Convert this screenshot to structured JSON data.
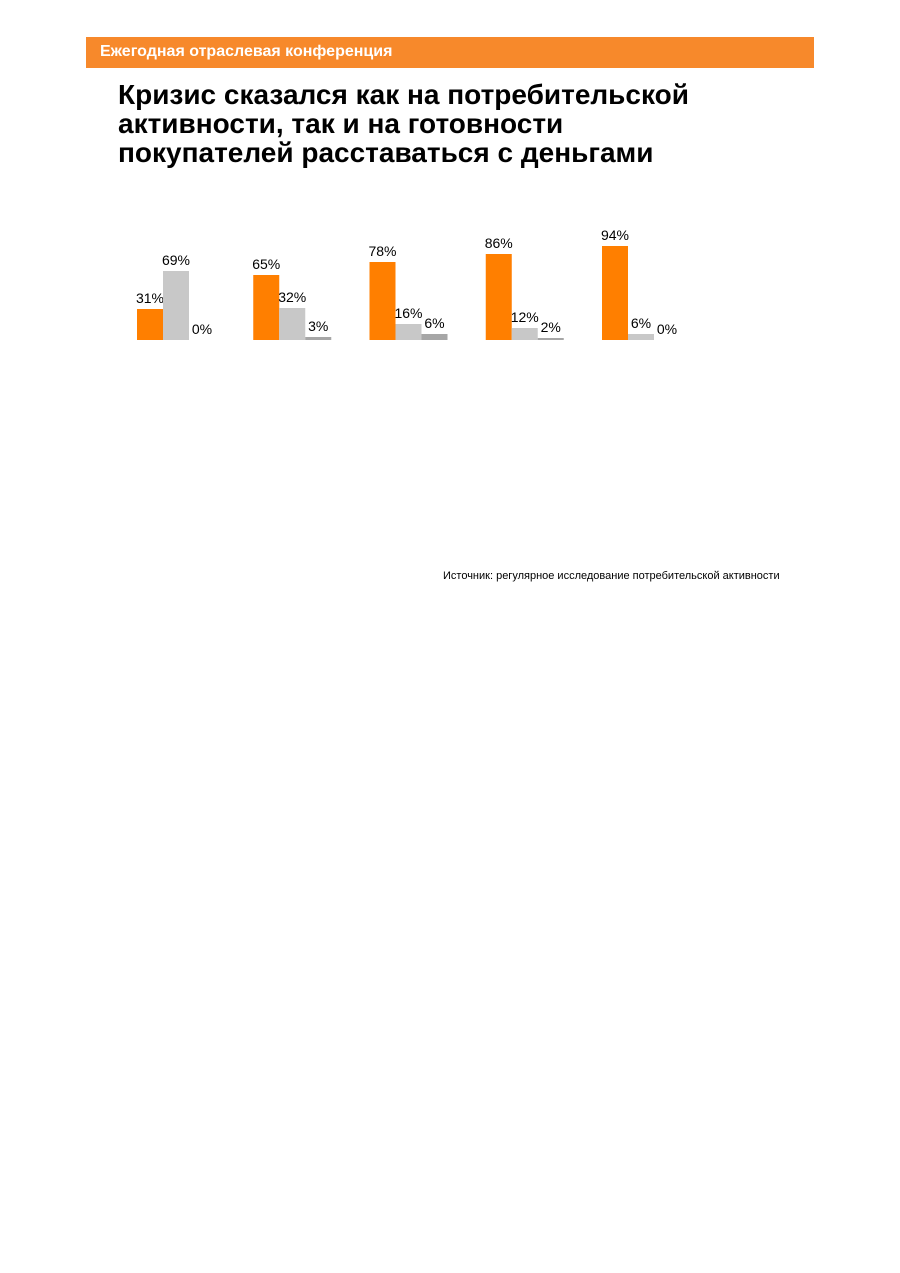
{
  "header": {
    "label": "Ежегодная отраслевая конференция",
    "color": "#F7892B"
  },
  "title": {
    "lines": [
      "Кризис сказался как на потребительской",
      "активности, так и на готовности",
      "покупателей расставаться с деньгами"
    ]
  },
  "source": "Источник: регулярное исследование потребительской активности",
  "chart_data": {
    "type": "bar",
    "title": "",
    "xlabel": "",
    "ylabel": "",
    "ylim": [
      0,
      100
    ],
    "grid": false,
    "legend": "none",
    "categories": [
      "",
      "",
      "",
      "",
      ""
    ],
    "series": [
      {
        "color": "#FF7F00",
        "values": [
          31,
          65,
          78,
          86,
          94
        ]
      },
      {
        "color": "#C8C8C8",
        "values": [
          69,
          32,
          16,
          12,
          6
        ]
      },
      {
        "color": "#A6A6A6",
        "values": [
          0,
          3,
          6,
          2,
          0
        ]
      }
    ],
    "value_suffix": "%"
  }
}
